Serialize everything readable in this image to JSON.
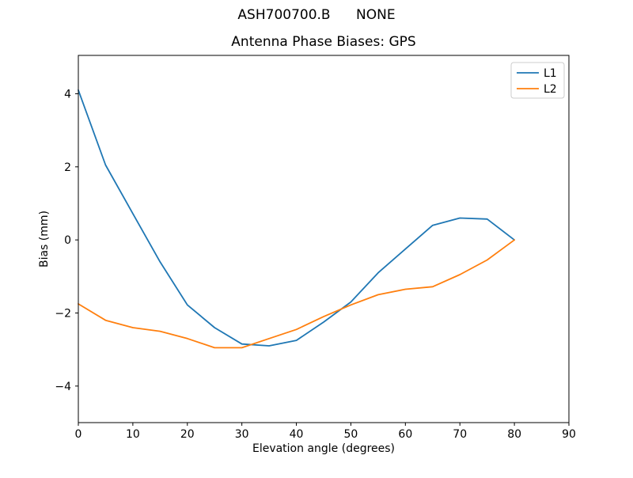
{
  "figure": {
    "background": "#ffffff"
  },
  "chart_data": {
    "type": "line",
    "suptitle": "ASH700700.B      NONE",
    "title": "Antenna Phase Biases: GPS",
    "xlabel": "Elevation angle (degrees)",
    "ylabel": "Bias (mm)",
    "xlim": [
      0,
      90
    ],
    "ylim": [
      -5,
      5.05
    ],
    "xticks": [
      0,
      10,
      20,
      30,
      40,
      50,
      60,
      70,
      80,
      90
    ],
    "yticks": [
      -4,
      -2,
      0,
      2,
      4
    ],
    "grid": false,
    "legend": {
      "position": "upper right",
      "entries": [
        "L1",
        "L2"
      ]
    },
    "x": [
      0,
      5,
      10,
      15,
      20,
      25,
      30,
      35,
      40,
      45,
      50,
      55,
      60,
      65,
      70,
      75,
      80
    ],
    "series": [
      {
        "name": "L1",
        "color": "#1f77b4",
        "values": [
          4.1,
          2.05,
          0.72,
          -0.6,
          -1.78,
          -2.4,
          -2.85,
          -2.9,
          -2.75,
          -2.25,
          -1.7,
          -0.9,
          -0.25,
          0.4,
          0.6,
          0.57,
          0.0
        ]
      },
      {
        "name": "L2",
        "color": "#ff7f0e",
        "values": [
          -1.75,
          -2.2,
          -2.4,
          -2.5,
          -2.7,
          -2.95,
          -2.95,
          -2.7,
          -2.45,
          -2.1,
          -1.78,
          -1.5,
          -1.35,
          -1.28,
          -0.95,
          -0.55,
          0.0
        ]
      }
    ],
    "axis_color": "#000000",
    "text_color": "#000000",
    "legend_edge_color": "#cccccc"
  }
}
